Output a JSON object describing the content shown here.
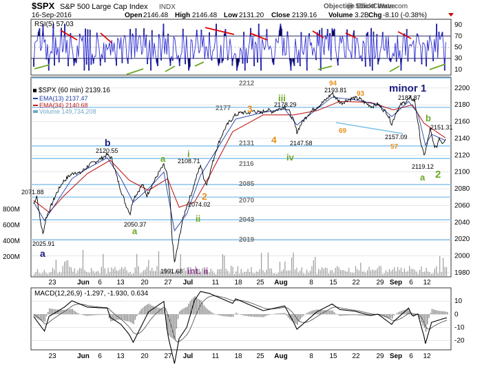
{
  "header": {
    "symbol": "$SPX",
    "name": "S&P 500 Large Cap Index",
    "exchange": "INDX",
    "date": "16-Sep-2016",
    "open_label": "Open",
    "open": "2146.48",
    "high_label": "High",
    "high": "2146.48",
    "low_label": "Low",
    "low": "2131.20",
    "close_label": "Close",
    "close": "2139.16",
    "volume_label": "Volume",
    "volume": "3.2B",
    "chg_label": "Chg",
    "chg": "-8.10 (-0.38%)",
    "brand": "Objective Elliott Wave",
    "watermark": "@ StockCharts.com",
    "colors": {
      "up": "#000000",
      "down": "#cc0000"
    }
  },
  "rsi_panel": {
    "label": "RSI(5) 57.03",
    "ticks": [
      "90",
      "70",
      "50",
      "30",
      "10"
    ],
    "tick_values": [
      90,
      70,
      50,
      30,
      10
    ],
    "colors": {
      "line": "#2b2bd0",
      "fill": "#000033",
      "bear_div": "#e00000",
      "bull_div": "#6aa621"
    }
  },
  "price_panel": {
    "legend": [
      {
        "text": "$SPX (60 min) 2139.16",
        "color": "#000000"
      },
      {
        "text": "EMA(13) 2137.47",
        "color": "#1e3da8"
      },
      {
        "text": "EMA(34) 2140.68",
        "color": "#c21d1d"
      },
      {
        "text": "Volume 149,734,208",
        "color": "#6fa7c8"
      }
    ],
    "y_ticks": [
      "2200",
      "2180",
      "2160",
      "2140",
      "2120",
      "2100",
      "2080",
      "2060",
      "2040",
      "2020",
      "2000",
      "1980"
    ],
    "vol_ticks": [
      "800M",
      "600M",
      "400M",
      "200M"
    ],
    "levels": [
      "2212",
      "2177",
      "2131",
      "2116",
      "2085",
      "2070",
      "2043",
      "2019"
    ],
    "price_annotations": [
      "2071.88",
      "2025.91",
      "2120.55",
      "2050.37",
      "1991.68",
      "2108.71",
      "2074.02",
      "2178.29",
      "2147.58",
      "2193.81",
      "2187.87",
      "2157.09",
      "2119.12",
      "2151.31"
    ],
    "wave_labels": [
      "a",
      "b",
      "a",
      "int. ii",
      "i",
      "ii",
      "3",
      "4",
      "iii",
      "iv",
      "94",
      "69",
      "93",
      "57",
      "minor 1",
      "a",
      "b",
      "2"
    ],
    "colors": {
      "level_line": "#8fc8ee",
      "grid": "#d8d8d8",
      "orange": "#e8901a",
      "green": "#6aa621",
      "navy": "#1a1a80",
      "purple": "#8e3f8e"
    }
  },
  "macd_panel": {
    "label": "MACD(12,26,9) -1.297, -1.930, 0.634",
    "ticks": [
      "10",
      "0",
      "-10",
      "-20"
    ],
    "tick_values": [
      10,
      0,
      -10,
      -20
    ]
  },
  "x_axis": {
    "labels": [
      "23",
      "Jun",
      "6",
      "13",
      "20",
      "27",
      "Jul",
      "11",
      "18",
      "25",
      "Aug",
      "8",
      "15",
      "22",
      "29",
      "Sep",
      "6",
      "12"
    ]
  },
  "chart_data": {
    "type": "line",
    "title": "$SPX S&P 500 Large Cap Index",
    "interval": "60 min",
    "y_range": [
      1975,
      2213
    ],
    "x_dates": [
      "23",
      "Jun",
      "6",
      "13",
      "20",
      "27",
      "Jul",
      "11",
      "18",
      "25",
      "Aug",
      "8",
      "15",
      "22",
      "29",
      "Sep",
      "6",
      "12"
    ],
    "price_path": [
      [
        0,
        2062
      ],
      [
        4,
        2071.88
      ],
      [
        8,
        2045
      ],
      [
        12,
        2025.91
      ],
      [
        16,
        2045
      ],
      [
        22,
        2058
      ],
      [
        30,
        2075
      ],
      [
        38,
        2088
      ],
      [
        46,
        2095
      ],
      [
        54,
        2100
      ],
      [
        60,
        2098
      ],
      [
        66,
        2103
      ],
      [
        72,
        2108
      ],
      [
        80,
        2112
      ],
      [
        88,
        2116
      ],
      [
        96,
        2120.55
      ],
      [
        102,
        2116
      ],
      [
        108,
        2096
      ],
      [
        114,
        2078
      ],
      [
        120,
        2062
      ],
      [
        126,
        2050.37
      ],
      [
        130,
        2068
      ],
      [
        136,
        2076
      ],
      [
        142,
        2085
      ],
      [
        148,
        2072
      ],
      [
        152,
        2080
      ],
      [
        158,
        2090
      ],
      [
        164,
        2100
      ],
      [
        170,
        2108
      ],
      [
        174,
        2098
      ],
      [
        178,
        2070
      ],
      [
        181,
        2020
      ],
      [
        184,
        1991.68
      ],
      [
        188,
        2010
      ],
      [
        194,
        2040
      ],
      [
        200,
        2060
      ],
      [
        206,
        2074.02
      ],
      [
        212,
        2092
      ],
      [
        218,
        2108.71
      ],
      [
        222,
        2094
      ],
      [
        226,
        2085
      ],
      [
        232,
        2105
      ],
      [
        238,
        2125
      ],
      [
        244,
        2140
      ],
      [
        250,
        2152
      ],
      [
        256,
        2160
      ],
      [
        264,
        2168
      ],
      [
        272,
        2171
      ],
      [
        280,
        2170
      ],
      [
        288,
        2173
      ],
      [
        296,
        2170
      ],
      [
        304,
        2174
      ],
      [
        312,
        2172
      ],
      [
        320,
        2175
      ],
      [
        328,
        2178.29
      ],
      [
        334,
        2172
      ],
      [
        340,
        2160
      ],
      [
        344,
        2147.58
      ],
      [
        350,
        2158
      ],
      [
        358,
        2168
      ],
      [
        366,
        2175
      ],
      [
        374,
        2180
      ],
      [
        382,
        2186
      ],
      [
        390,
        2193.81
      ],
      [
        396,
        2187
      ],
      [
        402,
        2182
      ],
      [
        410,
        2186
      ],
      [
        418,
        2188
      ],
      [
        426,
        2187
      ],
      [
        434,
        2182
      ],
      [
        442,
        2178
      ],
      [
        450,
        2181
      ],
      [
        456,
        2175
      ],
      [
        462,
        2170
      ],
      [
        468,
        2157.09
      ],
      [
        474,
        2172
      ],
      [
        480,
        2180
      ],
      [
        486,
        2184
      ],
      [
        492,
        2187.87
      ],
      [
        498,
        2185
      ],
      [
        502,
        2160
      ],
      [
        506,
        2135
      ],
      [
        510,
        2119.12
      ],
      [
        514,
        2132
      ],
      [
        518,
        2151.31
      ],
      [
        522,
        2135
      ],
      [
        526,
        2128
      ],
      [
        530,
        2141
      ],
      [
        534,
        2135
      ],
      [
        538,
        2139.16
      ]
    ],
    "ema13_path": [
      [
        0,
        2064
      ],
      [
        14,
        2042
      ],
      [
        30,
        2064
      ],
      [
        50,
        2092
      ],
      [
        70,
        2104
      ],
      [
        96,
        2117
      ],
      [
        114,
        2092
      ],
      [
        130,
        2064
      ],
      [
        150,
        2080
      ],
      [
        170,
        2100
      ],
      [
        184,
        2030
      ],
      [
        200,
        2050
      ],
      [
        218,
        2096
      ],
      [
        240,
        2128
      ],
      [
        264,
        2163
      ],
      [
        300,
        2171
      ],
      [
        328,
        2175
      ],
      [
        344,
        2156
      ],
      [
        370,
        2175
      ],
      [
        390,
        2189
      ],
      [
        420,
        2186
      ],
      [
        450,
        2180
      ],
      [
        468,
        2166
      ],
      [
        490,
        2184
      ],
      [
        502,
        2170
      ],
      [
        512,
        2132
      ],
      [
        520,
        2145
      ],
      [
        538,
        2137.47
      ]
    ],
    "ema34_path": [
      [
        0,
        2066
      ],
      [
        20,
        2052
      ],
      [
        40,
        2072
      ],
      [
        70,
        2098
      ],
      [
        100,
        2114
      ],
      [
        125,
        2090
      ],
      [
        150,
        2078
      ],
      [
        175,
        2092
      ],
      [
        190,
        2058
      ],
      [
        210,
        2064
      ],
      [
        230,
        2096
      ],
      [
        260,
        2148
      ],
      [
        300,
        2168
      ],
      [
        340,
        2168
      ],
      [
        370,
        2173
      ],
      [
        400,
        2184
      ],
      [
        440,
        2183
      ],
      [
        470,
        2174
      ],
      [
        495,
        2180
      ],
      [
        510,
        2158
      ],
      [
        538,
        2140.68
      ]
    ],
    "ema13": 2137.47,
    "ema34": 2140.68,
    "volume": 149734208,
    "rsi_last": 57.03,
    "macd": {
      "macd": -1.297,
      "signal": -1.93,
      "histogram": 0.634
    }
  }
}
